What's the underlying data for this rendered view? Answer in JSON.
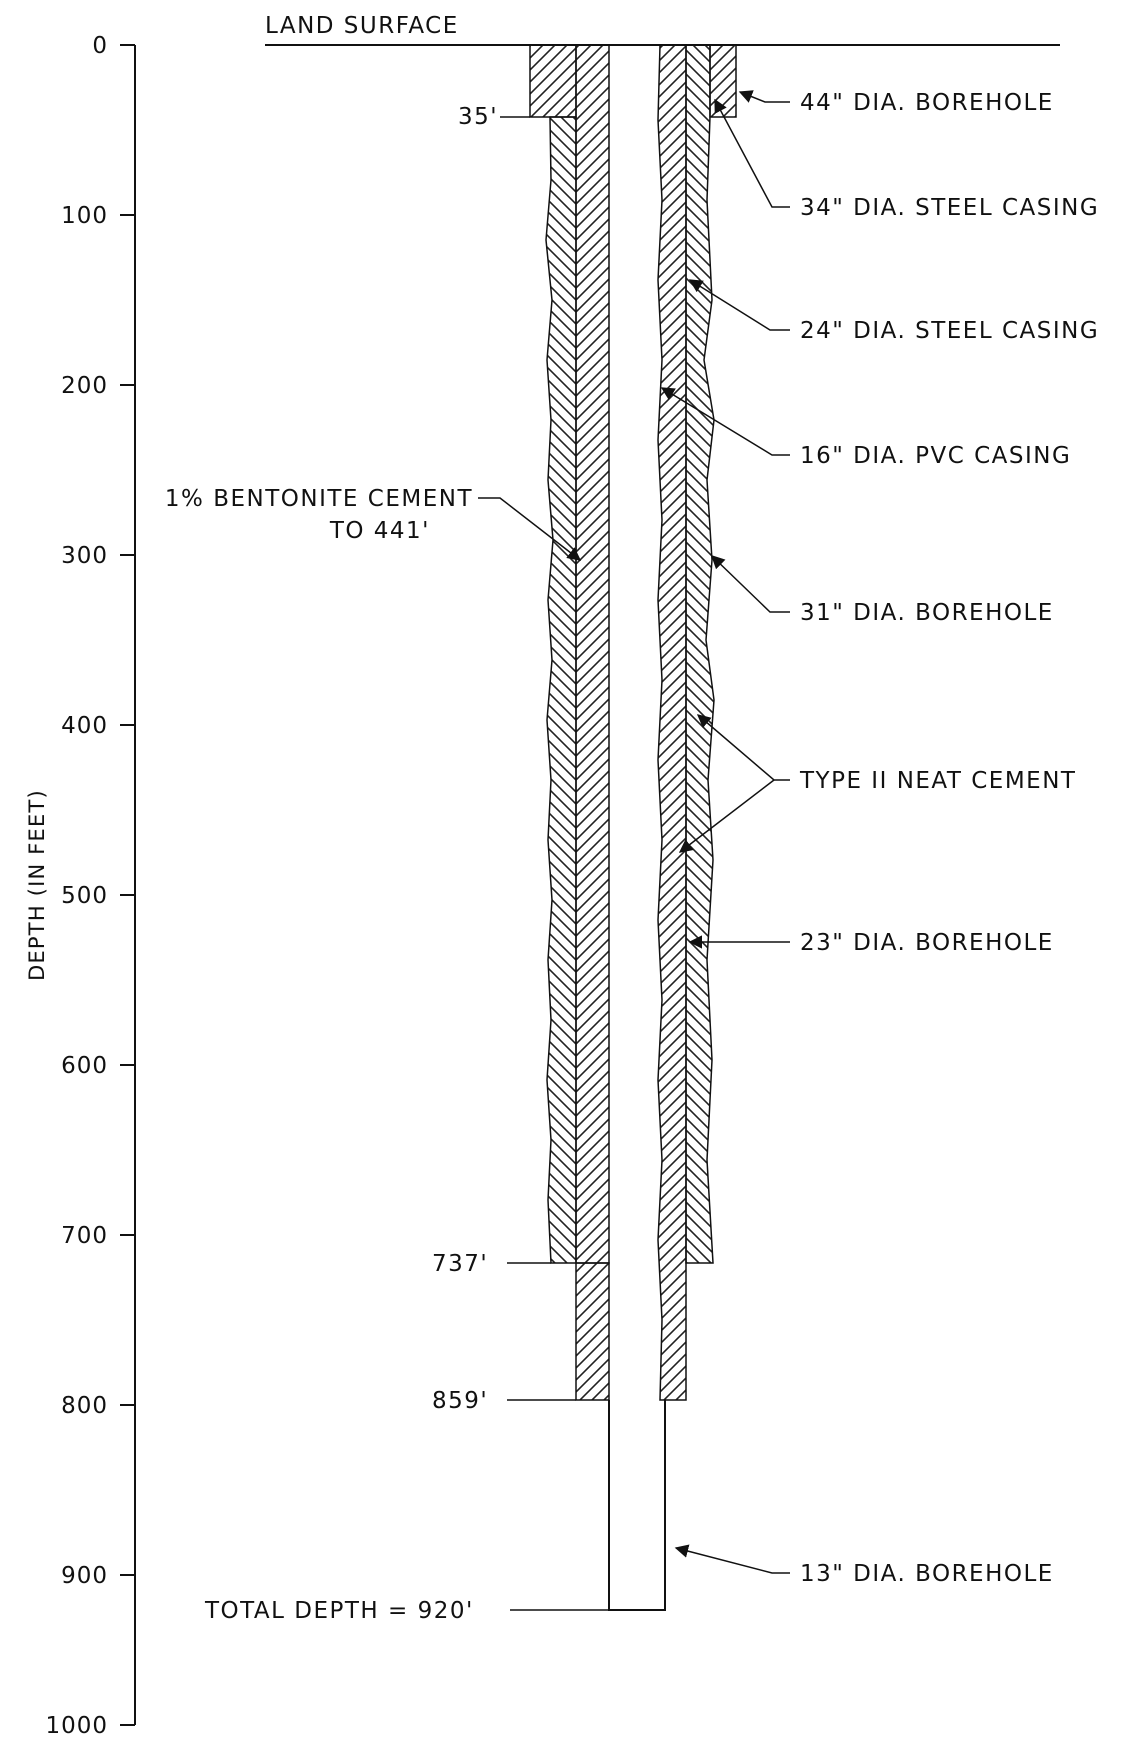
{
  "diagram": {
    "land_surface": "LAND SURFACE",
    "y_axis": {
      "title": "DEPTH (IN FEET)",
      "ticks": [
        "0",
        "100",
        "200",
        "300",
        "400",
        "500",
        "600",
        "700",
        "800",
        "900",
        "1000"
      ]
    },
    "depth_marks": {
      "d35": "35'",
      "d737": "737'",
      "d859": "859'",
      "total": "TOTAL DEPTH = 920'"
    },
    "callouts": {
      "borehole_44": "44\" DIA. BOREHOLE",
      "steel_34": "34\" DIA. STEEL CASING",
      "steel_24": "24\" DIA. STEEL CASING",
      "pvc_16": "16\" DIA. PVC CASING",
      "bentonite_line1": "1% BENTONITE CEMENT",
      "bentonite_line2": "TO 441'",
      "borehole_31": "31\" DIA. BOREHOLE",
      "neat_cement": "TYPE II NEAT CEMENT",
      "borehole_23": "23\" DIA. BOREHOLE",
      "borehole_13": "13\" DIA. BOREHOLE"
    },
    "colors": {
      "ink": "#111111",
      "background": "#ffffff"
    }
  }
}
